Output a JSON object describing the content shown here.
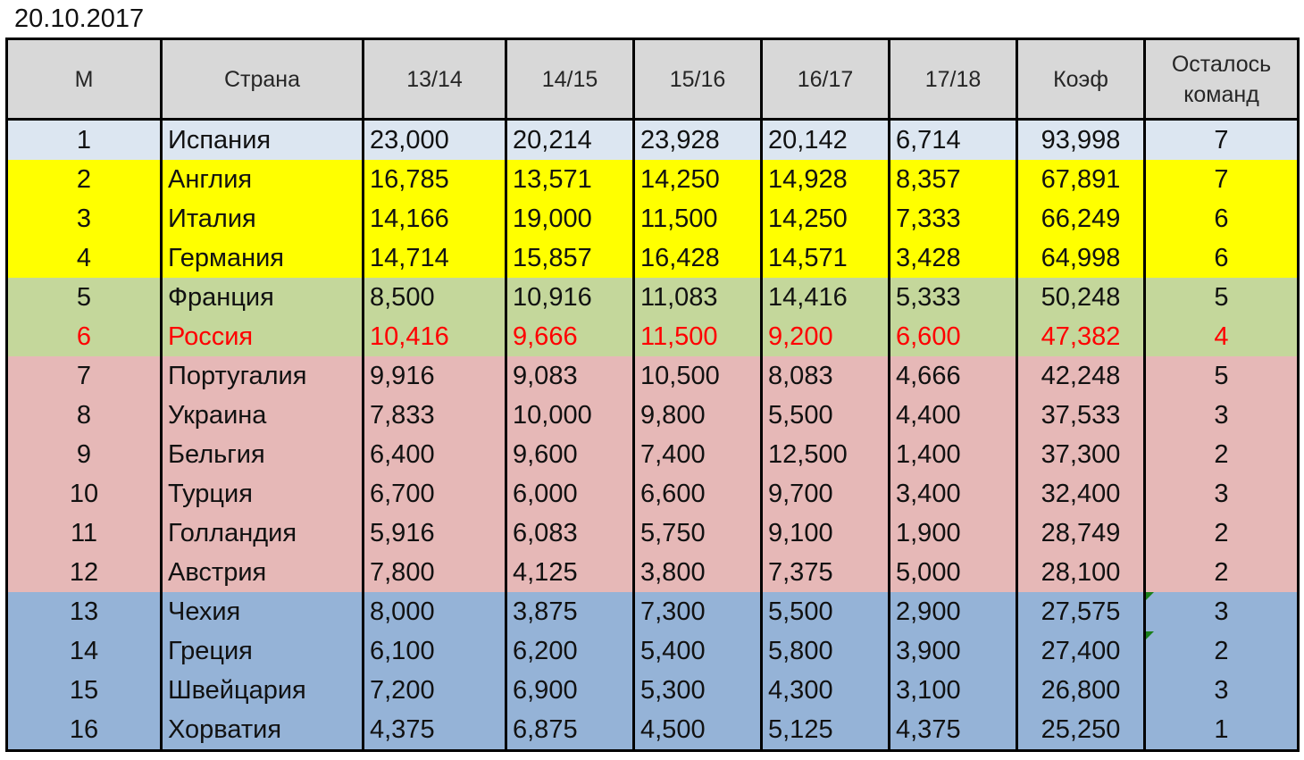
{
  "date": "20.10.2017",
  "columns": [
    "М",
    "Страна",
    "13/14",
    "14/15",
    "15/16",
    "16/17",
    "17/18",
    "Коэф",
    "Осталось команд"
  ],
  "rows": [
    {
      "m": "1",
      "country": "Испания",
      "s1": "23,000",
      "s2": "20,214",
      "s3": "23,928",
      "s4": "20,142",
      "s5": "6,714",
      "coef": "93,998",
      "left": "7"
    },
    {
      "m": "2",
      "country": "Англия",
      "s1": "16,785",
      "s2": "13,571",
      "s3": "14,250",
      "s4": "14,928",
      "s5": "8,357",
      "coef": "67,891",
      "left": "7"
    },
    {
      "m": "3",
      "country": "Италия",
      "s1": "14,166",
      "s2": "19,000",
      "s3": "11,500",
      "s4": "14,250",
      "s5": "7,333",
      "coef": "66,249",
      "left": "6"
    },
    {
      "m": "4",
      "country": "Германия",
      "s1": "14,714",
      "s2": "15,857",
      "s3": "16,428",
      "s4": "14,571",
      "s5": "3,428",
      "coef": "64,998",
      "left": "6"
    },
    {
      "m": "5",
      "country": "Франция",
      "s1": "8,500",
      "s2": "10,916",
      "s3": "11,083",
      "s4": "14,416",
      "s5": "5,333",
      "coef": "50,248",
      "left": "5"
    },
    {
      "m": "6",
      "country": "Россия",
      "s1": "10,416",
      "s2": "9,666",
      "s3": "11,500",
      "s4": "9,200",
      "s5": "6,600",
      "coef": "47,382",
      "left": "4"
    },
    {
      "m": "7",
      "country": "Португалия",
      "s1": "9,916",
      "s2": "9,083",
      "s3": "10,500",
      "s4": "8,083",
      "s5": "4,666",
      "coef": "42,248",
      "left": "5"
    },
    {
      "m": "8",
      "country": "Украина",
      "s1": "7,833",
      "s2": "10,000",
      "s3": "9,800",
      "s4": "5,500",
      "s5": "4,400",
      "coef": "37,533",
      "left": "3"
    },
    {
      "m": "9",
      "country": "Бельгия",
      "s1": "6,400",
      "s2": "9,600",
      "s3": "7,400",
      "s4": "12,500",
      "s5": "1,400",
      "coef": "37,300",
      "left": "2"
    },
    {
      "m": "10",
      "country": "Турция",
      "s1": "6,700",
      "s2": "6,000",
      "s3": "6,600",
      "s4": "9,700",
      "s5": "3,400",
      "coef": "32,400",
      "left": "3"
    },
    {
      "m": "11",
      "country": "Голландия",
      "s1": "5,916",
      "s2": "6,083",
      "s3": "5,750",
      "s4": "9,100",
      "s5": "1,900",
      "coef": "28,749",
      "left": "2"
    },
    {
      "m": "12",
      "country": "Австрия",
      "s1": "7,800",
      "s2": "4,125",
      "s3": "3,800",
      "s4": "7,375",
      "s5": "5,000",
      "coef": "28,100",
      "left": "2"
    },
    {
      "m": "13",
      "country": "Чехия",
      "s1": "8,000",
      "s2": "3,875",
      "s3": "7,300",
      "s4": "5,500",
      "s5": "2,900",
      "coef": "27,575",
      "left": "3"
    },
    {
      "m": "14",
      "country": "Греция",
      "s1": "6,100",
      "s2": "6,200",
      "s3": "5,400",
      "s4": "5,800",
      "s5": "3,900",
      "coef": "27,400",
      "left": "2"
    },
    {
      "m": "15",
      "country": "Швейцария",
      "s1": "7,200",
      "s2": "6,900",
      "s3": "5,300",
      "s4": "4,300",
      "s5": "3,100",
      "coef": "26,800",
      "left": "3"
    },
    {
      "m": "16",
      "country": "Хорватия",
      "s1": "4,375",
      "s2": "6,875",
      "s3": "4,500",
      "s4": "5,125",
      "s5": "4,375",
      "coef": "25,250",
      "left": "1"
    }
  ],
  "colors": {
    "header_bg": "#d8d8d8",
    "group_top": "#dce6f1",
    "group_yellow": "#ffff00",
    "group_green": "#c4d79b",
    "group_pink": "#e6b8b7",
    "group_blue": "#95b3d7",
    "highlight_text": "#ff0000",
    "comment_marker": "#1a7f1a"
  }
}
